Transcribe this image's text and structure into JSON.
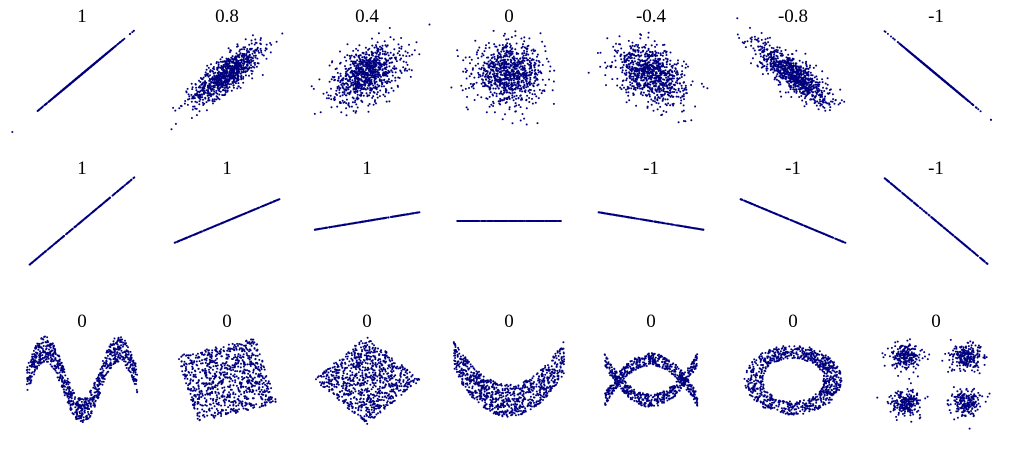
{
  "chart_data": {
    "type": "scatter",
    "marker_color": "#00007f",
    "background": "#ffffff",
    "grid": false,
    "panels": [
      {
        "label": "1",
        "shape": "correlated",
        "rho": 1.0
      },
      {
        "label": "0.8",
        "shape": "correlated",
        "rho": 0.8
      },
      {
        "label": "0.4",
        "shape": "correlated",
        "rho": 0.4
      },
      {
        "label": "0",
        "shape": "correlated",
        "rho": 0.0
      },
      {
        "label": "-0.4",
        "shape": "correlated",
        "rho": -0.4
      },
      {
        "label": "-0.8",
        "shape": "correlated",
        "rho": -0.8
      },
      {
        "label": "-1",
        "shape": "correlated",
        "rho": -1.0
      },
      {
        "label": "1",
        "shape": "line",
        "slope": 1.0
      },
      {
        "label": "1",
        "shape": "line",
        "slope": 0.5
      },
      {
        "label": "1",
        "shape": "line",
        "slope": 0.2
      },
      {
        "label": "",
        "shape": "line",
        "slope": 0.0
      },
      {
        "label": "-1",
        "shape": "line",
        "slope": -0.2
      },
      {
        "label": "-1",
        "shape": "line",
        "slope": -0.5
      },
      {
        "label": "-1",
        "shape": "line",
        "slope": -1.0
      },
      {
        "label": "0",
        "shape": "wave"
      },
      {
        "label": "0",
        "shape": "rotated-square",
        "angle": 15
      },
      {
        "label": "0",
        "shape": "rotated-square",
        "angle": 45
      },
      {
        "label": "0",
        "shape": "parabola"
      },
      {
        "label": "0",
        "shape": "x-curve"
      },
      {
        "label": "0",
        "shape": "ring"
      },
      {
        "label": "0",
        "shape": "four-clusters"
      }
    ]
  }
}
